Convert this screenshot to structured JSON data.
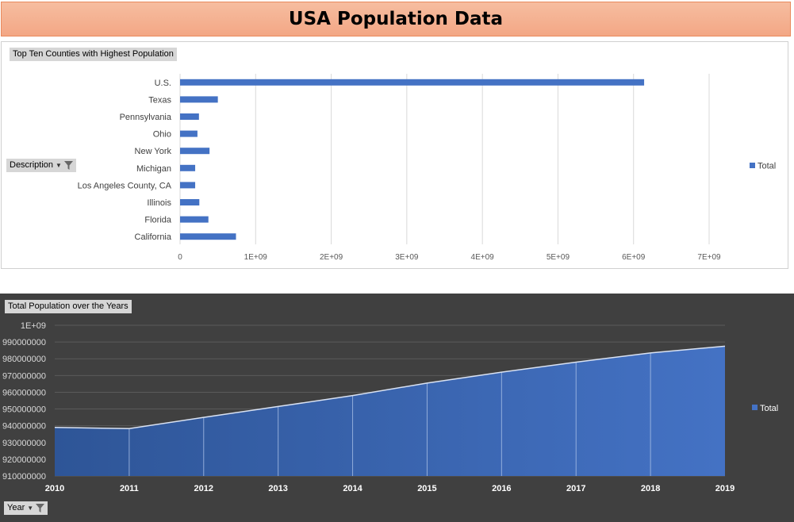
{
  "page_title": "USA Population Data",
  "bar_panel": {
    "title_label": "Top Ten Counties with Highest Population",
    "axis_field_label": "Description",
    "legend_label": "Total"
  },
  "area_panel": {
    "title_label": "Total Population over the Years",
    "axis_field_label": "Year",
    "legend_label": "Total"
  },
  "colors": {
    "bar": "#4472c4",
    "area_dark": "#2e5597",
    "area_light": "#4472c4",
    "banner": "#f4b084"
  },
  "chart_data": [
    {
      "type": "bar",
      "orientation": "horizontal",
      "title": "Top Ten Counties with Highest Population",
      "categories": [
        "U.S.",
        "Texas",
        "Pennsylvania",
        "Ohio",
        "New York",
        "Michigan",
        "Los Angeles County, CA",
        "Illinois",
        "Florida",
        "California"
      ],
      "series": [
        {
          "name": "Total",
          "values": [
            6140000000,
            500000000,
            250000000,
            230000000,
            390000000,
            200000000,
            200000000,
            255000000,
            375000000,
            740000000
          ]
        }
      ],
      "xlim": [
        0,
        7000000000
      ],
      "xticks": [
        0,
        1000000000,
        2000000000,
        3000000000,
        4000000000,
        5000000000,
        6000000000,
        7000000000
      ],
      "xtick_labels": [
        "0",
        "1E+09",
        "2E+09",
        "3E+09",
        "4E+09",
        "5E+09",
        "6E+09",
        "7E+09"
      ],
      "xlabel": "",
      "ylabel": "Description",
      "grid": true,
      "legend": "right"
    },
    {
      "type": "area",
      "title": "Total Population over the Years",
      "x": [
        "2010",
        "2011",
        "2012",
        "2013",
        "2014",
        "2015",
        "2016",
        "2017",
        "2018",
        "2019"
      ],
      "series": [
        {
          "name": "Total",
          "values": [
            939000000,
            938300000,
            945000000,
            951500000,
            958000000,
            965500000,
            972000000,
            978000000,
            983500000,
            987500000
          ]
        }
      ],
      "ylim": [
        910000000,
        1000000000
      ],
      "yticks": [
        910000000,
        920000000,
        930000000,
        940000000,
        950000000,
        960000000,
        970000000,
        980000000,
        990000000,
        1000000000
      ],
      "ytick_labels": [
        "910000000",
        "920000000",
        "930000000",
        "940000000",
        "950000000",
        "960000000",
        "970000000",
        "980000000",
        "990000000",
        "1E+09"
      ],
      "xlabel": "Year",
      "ylabel": "",
      "grid": true,
      "legend": "right"
    }
  ]
}
